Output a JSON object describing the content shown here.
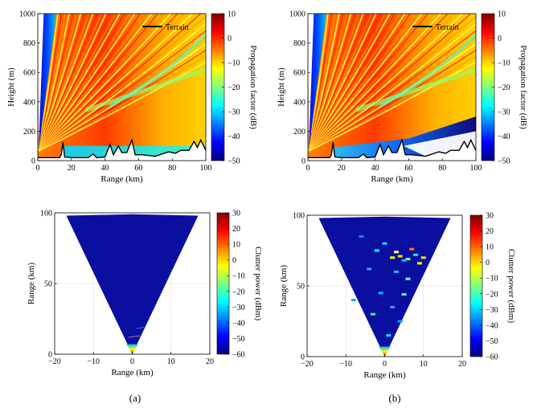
{
  "figure": {
    "panel_labels": [
      "(a)",
      "(b)"
    ]
  },
  "colors": {
    "jet": [
      "#00007f",
      "#0000ff",
      "#007fff",
      "#00ffff",
      "#7fff7f",
      "#ffff00",
      "#ff7f00",
      "#ff0000",
      "#7f0000"
    ],
    "terrain_line": "#000000"
  },
  "chart_data": [
    {
      "id": "a-top",
      "type": "heatmap",
      "title": "",
      "xlabel": "Range (km)",
      "ylabel": "Height (m)",
      "xlim": [
        0,
        100
      ],
      "ylim": [
        0,
        1000
      ],
      "xticks": [
        "0",
        "20",
        "40",
        "60",
        "80",
        "100"
      ],
      "yticks": [
        "0",
        "200",
        "400",
        "600",
        "800",
        "1000"
      ],
      "colorbar": {
        "label": "Propagation factor (dB)",
        "ticks": [
          "10",
          "0",
          "−10",
          "−20",
          "−30",
          "−40",
          "−50"
        ],
        "range": [
          -50,
          10
        ]
      },
      "legend": {
        "entries": [
          "Terrain"
        ],
        "placement": "top-right"
      },
      "terrain_profile": {
        "range_km": [
          0,
          13,
          14,
          15,
          16,
          20,
          30,
          33,
          35,
          40,
          43,
          45,
          48,
          50,
          53,
          56,
          58,
          62,
          70,
          78,
          82,
          85,
          90,
          93,
          95,
          97,
          100
        ],
        "height_m": [
          20,
          20,
          40,
          125,
          25,
          20,
          20,
          45,
          20,
          25,
          110,
          40,
          100,
          55,
          55,
          140,
          40,
          40,
          30,
          60,
          50,
          70,
          70,
          130,
          90,
          140,
          70
        ]
      }
    },
    {
      "id": "b-top",
      "type": "heatmap",
      "title": "",
      "xlabel": "Range (km)",
      "ylabel": "Height (m)",
      "xlim": [
        0,
        100
      ],
      "ylim": [
        0,
        1000
      ],
      "xticks": [
        "0",
        "20",
        "40",
        "60",
        "80",
        "100"
      ],
      "yticks": [
        "0",
        "200",
        "400",
        "600",
        "800",
        "1000"
      ],
      "colorbar": {
        "label": "Propagation factor (dB)",
        "ticks": [
          "10",
          "0",
          "−10",
          "−20",
          "−30",
          "−40",
          "−50"
        ],
        "range": [
          -50,
          10
        ]
      },
      "legend": {
        "entries": [
          "Terrain"
        ],
        "placement": "top-right"
      },
      "terrain_profile": {
        "range_km": [
          0,
          13,
          14,
          15,
          16,
          20,
          30,
          33,
          35,
          40,
          43,
          45,
          48,
          50,
          53,
          56,
          58,
          62,
          70,
          78,
          82,
          85,
          90,
          93,
          95,
          97,
          100
        ],
        "height_m": [
          20,
          20,
          40,
          125,
          25,
          20,
          20,
          45,
          20,
          25,
          110,
          40,
          100,
          55,
          55,
          140,
          40,
          40,
          30,
          60,
          50,
          70,
          70,
          130,
          90,
          140,
          70
        ]
      }
    },
    {
      "id": "a-bottom",
      "type": "heatmap",
      "title": "",
      "xlabel": "Range (km)",
      "ylabel": "Range (km)",
      "xlim": [
        -20,
        20
      ],
      "ylim": [
        0,
        100
      ],
      "xticks": [
        "−20",
        "−10",
        "0",
        "10",
        "20"
      ],
      "yticks": [
        "0",
        "50",
        "100"
      ],
      "colorbar": {
        "label": "Clutter power (dBm)",
        "ticks": [
          "30",
          "20",
          "10",
          "0",
          "−10",
          "−20",
          "−30",
          "−40",
          "−50",
          "−60"
        ],
        "range": [
          -60,
          30
        ]
      },
      "sector": {
        "apex": [
          0,
          0
        ],
        "top_left": [
          -17,
          98
        ],
        "top_right": [
          17,
          98
        ]
      }
    },
    {
      "id": "b-bottom",
      "type": "heatmap",
      "title": "",
      "xlabel": "Range (km)",
      "ylabel": "Range (km)",
      "xlim": [
        -20,
        20
      ],
      "ylim": [
        0,
        100
      ],
      "xticks": [
        "−20",
        "−10",
        "0",
        "10",
        "20"
      ],
      "yticks": [
        "0",
        "50",
        "100"
      ],
      "colorbar": {
        "label": "Clutter power (dBm)",
        "ticks": [
          "30",
          "20",
          "10",
          "0",
          "−10",
          "−20",
          "−30",
          "−40",
          "−50",
          "−60"
        ],
        "range": [
          -60,
          30
        ]
      },
      "sector": {
        "apex": [
          0,
          0
        ],
        "top_left": [
          -17,
          98
        ],
        "top_right": [
          17,
          98
        ]
      }
    }
  ]
}
